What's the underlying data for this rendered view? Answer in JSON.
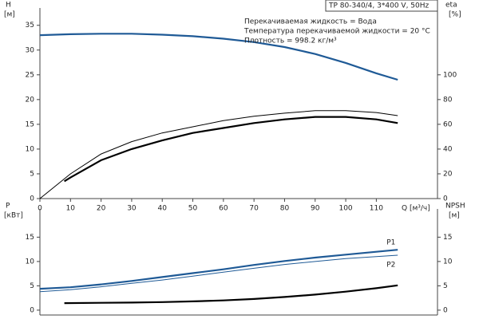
{
  "chart_data": [
    {
      "type": "line",
      "title": "TP 80-340/4, 3*400 V, 50Hz",
      "annotations": [
        "Перекачиваемая жидкость = Вода",
        "Температура перекачиваемой жидкости = 20 °C",
        "Плотность = 998.2 кг/м³"
      ],
      "ylabel": "H",
      "yunit": "[м]",
      "y2label": "eta",
      "y2unit": "[%]",
      "xlabel": "Q [м³/ч]",
      "xlim": [
        0,
        130
      ],
      "xticks": [
        0,
        10,
        20,
        30,
        40,
        50,
        60,
        70,
        80,
        90,
        100,
        110
      ],
      "ylim": [
        0,
        38.5
      ],
      "yticks": [
        0,
        5,
        10,
        15,
        20,
        25,
        30,
        35
      ],
      "y2lim": [
        0,
        154
      ],
      "y2ticks": [
        0,
        20,
        40,
        60,
        80,
        100
      ],
      "series": [
        {
          "color": "#1f5a96",
          "linewidth": 2.2,
          "x": [
            0,
            10,
            20,
            30,
            40,
            50,
            60,
            70,
            80,
            90,
            100,
            110,
            117
          ],
          "values": [
            33,
            33.2,
            33.3,
            33.3,
            33.1,
            32.8,
            32.3,
            31.6,
            30.6,
            29.2,
            27.4,
            25.3,
            24
          ]
        },
        {
          "color": "#000000",
          "linewidth": 1,
          "axis": "y2",
          "x": [
            0,
            10,
            20,
            30,
            40,
            50,
            60,
            70,
            80,
            90,
            100,
            110,
            117
          ],
          "values": [
            0,
            20,
            36,
            46,
            53,
            58,
            63,
            66.5,
            69,
            71,
            71,
            69.5,
            67
          ]
        },
        {
          "color": "#000000",
          "linewidth": 2.2,
          "axis": "y2",
          "x": [
            8,
            10,
            20,
            30,
            40,
            50,
            60,
            70,
            80,
            90,
            100,
            110,
            117
          ],
          "values": [
            14,
            17,
            31,
            40,
            47,
            53,
            57,
            61,
            64,
            66,
            66,
            64,
            61
          ]
        }
      ]
    },
    {
      "type": "line",
      "ylabel": "P",
      "yunit": "[кВт]",
      "y2label": "NPSH",
      "y2unit": "[м]",
      "xlim": [
        0,
        130
      ],
      "ylim": [
        -1,
        20.8
      ],
      "yticks": [
        0,
        5,
        10,
        15
      ],
      "y2lim": [
        -1,
        20.8
      ],
      "y2ticks": [
        0,
        5,
        10,
        15
      ],
      "series": [
        {
          "name": "P1",
          "color": "#1f5a96",
          "linewidth": 2.2,
          "x": [
            0,
            10,
            20,
            30,
            40,
            50,
            60,
            70,
            80,
            90,
            100,
            110,
            117
          ],
          "values": [
            4.4,
            4.7,
            5.3,
            6.0,
            6.8,
            7.6,
            8.4,
            9.3,
            10.1,
            10.8,
            11.4,
            12.0,
            12.4
          ]
        },
        {
          "name": "P2",
          "color": "#1f5a96",
          "linewidth": 1,
          "x": [
            0,
            10,
            20,
            30,
            40,
            50,
            60,
            70,
            80,
            90,
            100,
            110,
            117
          ],
          "values": [
            3.8,
            4.2,
            4.8,
            5.5,
            6.2,
            7.0,
            7.8,
            8.6,
            9.4,
            10.0,
            10.6,
            11.0,
            11.3
          ]
        },
        {
          "color": "#000000",
          "linewidth": 2.2,
          "axis": "y2",
          "x": [
            8,
            20,
            30,
            40,
            50,
            60,
            70,
            80,
            90,
            100,
            110,
            117
          ],
          "values": [
            1.45,
            1.5,
            1.55,
            1.65,
            1.8,
            2.0,
            2.3,
            2.7,
            3.2,
            3.8,
            4.5,
            5.1
          ]
        }
      ]
    }
  ]
}
